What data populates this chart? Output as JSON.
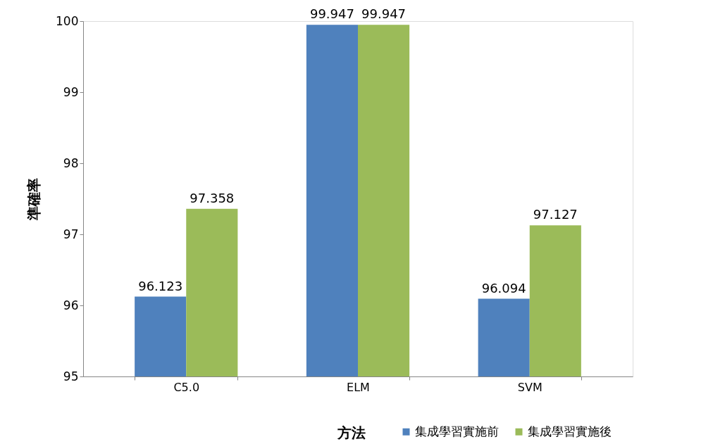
{
  "chart_data": {
    "type": "bar",
    "xlabel": "方法",
    "ylabel": "準確率",
    "categories": [
      "C5.0",
      "ELM",
      "SVM"
    ],
    "series": [
      {
        "name": "集成學習實施前",
        "color": "#4f81bd",
        "values": [
          96.123,
          99.947,
          96.094
        ]
      },
      {
        "name": "集成學習實施後",
        "color": "#9bbb59",
        "values": [
          97.358,
          99.947,
          97.127
        ]
      }
    ],
    "ylim": [
      95,
      100
    ],
    "yticks": [
      95,
      96,
      97,
      98,
      99,
      100
    ],
    "grid": false,
    "legend": "bottom right",
    "data_labels": true
  }
}
